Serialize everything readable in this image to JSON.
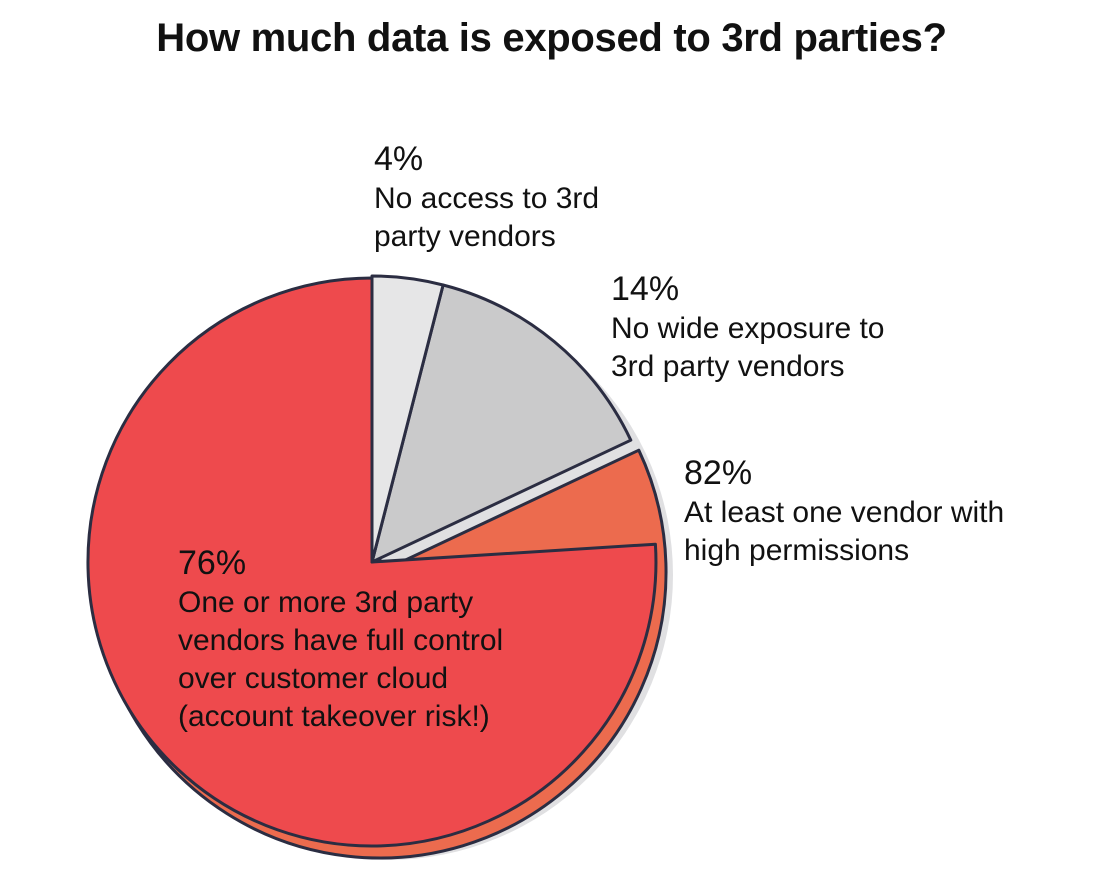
{
  "chart_data": {
    "type": "pie",
    "title": "How much data is exposed to 3rd parties?",
    "slices": [
      {
        "pct_label": "4%",
        "value": 4,
        "label_line1": "No access to 3rd",
        "label_line2": "party vendors",
        "color": "#e6e6e7"
      },
      {
        "pct_label": "14%",
        "value": 14,
        "label_line1": "No wide exposure to",
        "label_line2": "3rd party vendors",
        "color": "#cacacb"
      },
      {
        "pct_label": "82%",
        "value": 82,
        "label_line1": "At least one vendor with",
        "label_line2": "high permissions",
        "color": "#ec6b4e"
      },
      {
        "pct_label": "76%",
        "value": 76,
        "label_line1": "One or more 3rd party",
        "label_line2": "vendors have full control",
        "label_line3": "over customer cloud",
        "label_line4": "(account takeover risk!)",
        "color": "#ee4a4d",
        "subset_of": "82%"
      }
    ],
    "colors": {
      "outline": "#2b2d42",
      "shadow": "#e0e0e2"
    }
  }
}
